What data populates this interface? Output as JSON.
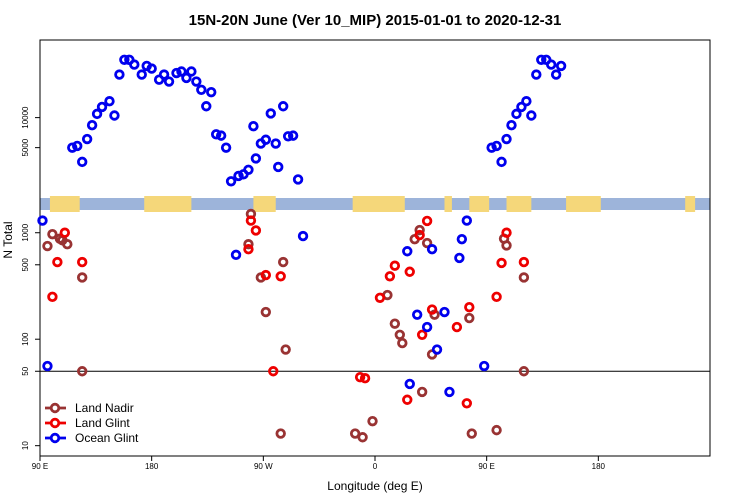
{
  "chart_data": {
    "type": "scatter",
    "title": "15N-20N June (Ver 10_MIP)   2015-01-01 to 2020-12-31",
    "xlabel": "Longitude (deg E)",
    "ylabel": "N Total",
    "x_scale": "longitude",
    "y_scale": "log-broken",
    "xlim": [
      -90,
      180
    ],
    "x_ticks": [
      {
        "value": -90,
        "label": "90 E"
      },
      {
        "value": -45,
        "label": "180"
      },
      {
        "value": 0,
        "label": "90 W"
      },
      {
        "value": 45,
        "label": "0"
      },
      {
        "value": 90,
        "label": "90 E"
      },
      {
        "value": 135,
        "label": "180"
      }
    ],
    "upper_panel": {
      "ylim": [
        1600,
        60000
      ],
      "y_ticks": [
        5000,
        10000
      ]
    },
    "lower_panel": {
      "ylim": [
        8,
        1600
      ],
      "y_ticks": [
        10,
        50,
        100,
        500,
        1000
      ]
    },
    "reference_line": 50,
    "grid": false,
    "legend_position": "bottom-left",
    "land_mask_colors": {
      "ocean": "#9db4da",
      "land": "#f5d77a"
    },
    "land_segments": [
      [
        -86,
        -74
      ],
      [
        -48,
        -30
      ],
      [
        -35,
        -29
      ],
      [
        -4,
        5
      ],
      [
        36,
        57
      ],
      [
        73,
        76
      ],
      [
        83,
        91
      ],
      [
        98,
        108
      ],
      [
        122,
        136
      ],
      [
        170,
        174
      ]
    ],
    "series": [
      {
        "name": "Land Nadir",
        "color": "#993333",
        "points": [
          [
            -87,
            750
          ],
          [
            -85,
            970
          ],
          [
            -82,
            880
          ],
          [
            -81,
            850
          ],
          [
            -79,
            780
          ],
          [
            -73,
            380
          ],
          [
            -73,
            50
          ],
          [
            -6,
            780
          ],
          [
            -5,
            1500
          ],
          [
            -1,
            380
          ],
          [
            1,
            180
          ],
          [
            7,
            13
          ],
          [
            8,
            530
          ],
          [
            9,
            80
          ],
          [
            37,
            13
          ],
          [
            40,
            12
          ],
          [
            44,
            17
          ],
          [
            50,
            260
          ],
          [
            53,
            140
          ],
          [
            55,
            110
          ],
          [
            56,
            92
          ],
          [
            61,
            870
          ],
          [
            63,
            1060
          ],
          [
            64,
            32
          ],
          [
            66,
            800
          ],
          [
            68,
            72
          ],
          [
            69,
            170
          ],
          [
            83,
            158
          ],
          [
            84,
            13
          ],
          [
            94,
            14
          ],
          [
            97,
            880
          ],
          [
            98,
            760
          ],
          [
            105,
            380
          ],
          [
            105,
            50
          ]
        ]
      },
      {
        "name": "Land Glint",
        "color": "#ee0000",
        "points": [
          [
            -85,
            250
          ],
          [
            -83,
            530
          ],
          [
            -80,
            1000
          ],
          [
            -73,
            530
          ],
          [
            -6,
            700
          ],
          [
            -5,
            1300
          ],
          [
            -3,
            1050
          ],
          [
            1,
            400
          ],
          [
            4,
            50
          ],
          [
            7,
            390
          ],
          [
            39,
            44
          ],
          [
            41,
            43
          ],
          [
            47,
            245
          ],
          [
            51,
            390
          ],
          [
            53,
            490
          ],
          [
            58,
            27
          ],
          [
            59,
            430
          ],
          [
            63,
            950
          ],
          [
            64,
            110
          ],
          [
            66,
            1290
          ],
          [
            68,
            190
          ],
          [
            78,
            130
          ],
          [
            82,
            25
          ],
          [
            83,
            200
          ],
          [
            94,
            250
          ],
          [
            96,
            520
          ],
          [
            98,
            1000
          ],
          [
            105,
            530
          ]
        ]
      },
      {
        "name": "Ocean Glint",
        "color": "#0000ee",
        "points": [
          [
            -89,
            1300
          ],
          [
            -87,
            56
          ],
          [
            -77,
            5000
          ],
          [
            -75,
            5200
          ],
          [
            -73,
            3600
          ],
          [
            -71,
            6100
          ],
          [
            -69,
            8400
          ],
          [
            -67,
            10900
          ],
          [
            -65,
            12800
          ],
          [
            -62,
            14600
          ],
          [
            -60,
            10500
          ],
          [
            -58,
            27000
          ],
          [
            -56,
            38000
          ],
          [
            -54,
            38000
          ],
          [
            -52,
            34000
          ],
          [
            -49,
            27000
          ],
          [
            -47,
            33000
          ],
          [
            -45,
            31000
          ],
          [
            -42,
            24000
          ],
          [
            -40,
            27000
          ],
          [
            -38,
            23000
          ],
          [
            -35,
            28000
          ],
          [
            -33,
            29000
          ],
          [
            -31,
            25000
          ],
          [
            -29,
            29000
          ],
          [
            -27,
            23000
          ],
          [
            -25,
            19000
          ],
          [
            -23,
            13000
          ],
          [
            -21,
            18000
          ],
          [
            -19,
            6800
          ],
          [
            -17,
            6600
          ],
          [
            -15,
            5000
          ],
          [
            -13,
            2300
          ],
          [
            -11,
            620
          ],
          [
            -10,
            2600
          ],
          [
            -8,
            2700
          ],
          [
            -6,
            3000
          ],
          [
            -4,
            8200
          ],
          [
            -3,
            3900
          ],
          [
            -1,
            5500
          ],
          [
            1,
            6000
          ],
          [
            3,
            11000
          ],
          [
            5,
            5500
          ],
          [
            6,
            3200
          ],
          [
            8,
            13000
          ],
          [
            10,
            6500
          ],
          [
            12,
            6600
          ],
          [
            14,
            2400
          ],
          [
            16,
            930
          ],
          [
            58,
            670
          ],
          [
            59,
            38
          ],
          [
            62,
            170
          ],
          [
            66,
            130
          ],
          [
            68,
            700
          ],
          [
            70,
            80
          ],
          [
            73,
            180
          ],
          [
            75,
            32
          ],
          [
            79,
            580
          ],
          [
            80,
            870
          ],
          [
            82,
            1300
          ],
          [
            89,
            56
          ],
          [
            92,
            5000
          ],
          [
            94,
            5200
          ],
          [
            96,
            3600
          ],
          [
            98,
            6100
          ],
          [
            100,
            8400
          ],
          [
            102,
            10900
          ],
          [
            104,
            12800
          ],
          [
            106,
            14600
          ],
          [
            108,
            10500
          ],
          [
            110,
            27000
          ],
          [
            112,
            38000
          ],
          [
            114,
            38000
          ],
          [
            116,
            34000
          ],
          [
            118,
            27000
          ],
          [
            120,
            33000
          ]
        ]
      }
    ]
  }
}
